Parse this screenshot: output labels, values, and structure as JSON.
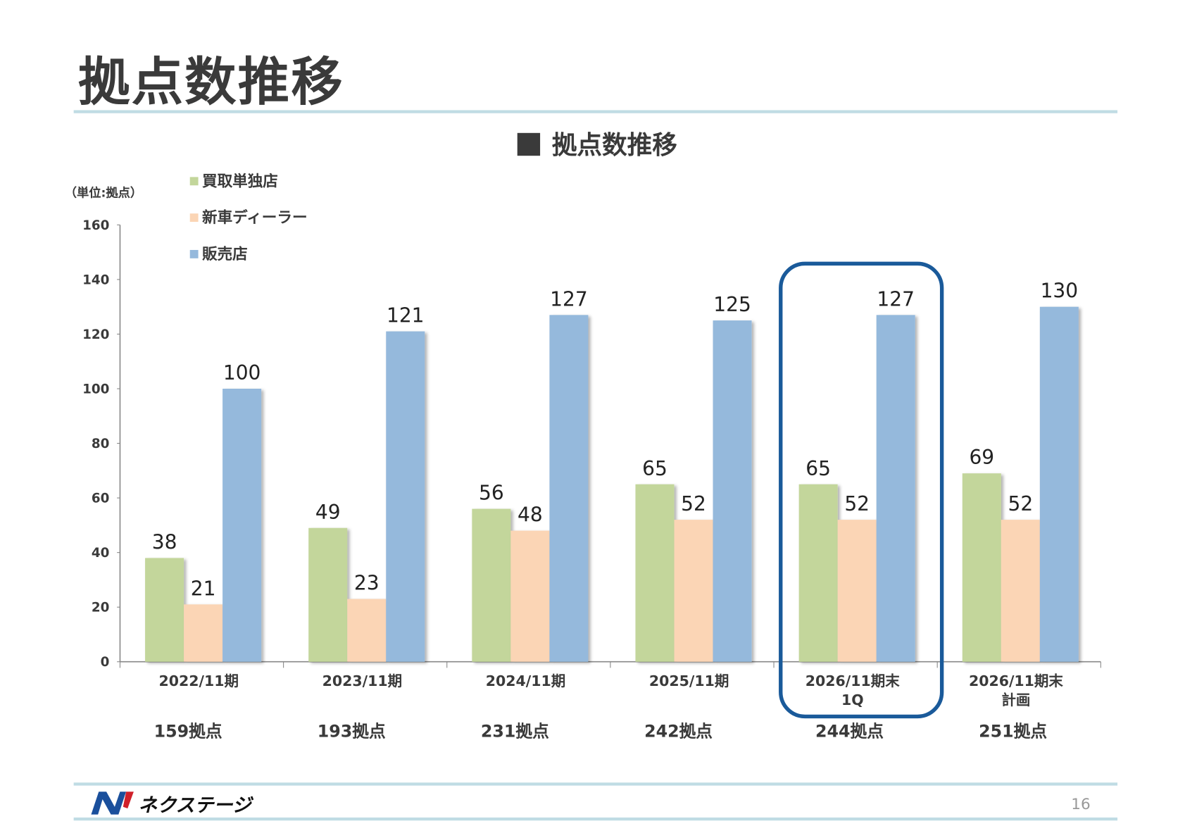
{
  "page": {
    "title": "拠点数推移",
    "page_number": "16",
    "logo_text": "ネクステージ"
  },
  "chart_data": {
    "type": "bar",
    "title": "拠点数推移",
    "unit_label": "（単位:拠点）",
    "categories": [
      [
        "2022/11期"
      ],
      [
        "2023/11期"
      ],
      [
        "2024/11期"
      ],
      [
        "2025/11期"
      ],
      [
        "2026/11期末",
        "1Q"
      ],
      [
        "2026/11期末",
        "計画"
      ]
    ],
    "totals": [
      "159拠点",
      "193拠点",
      "231拠点",
      "242拠点",
      "244拠点",
      "251拠点"
    ],
    "series": [
      {
        "name": "買取単独店",
        "color": "#c3d69b",
        "values": [
          38,
          49,
          56,
          65,
          65,
          69
        ]
      },
      {
        "name": "新車ディーラー",
        "color": "#fbd5b5",
        "values": [
          21,
          23,
          48,
          52,
          52,
          52
        ]
      },
      {
        "name": "販売店",
        "color": "#95b9dc",
        "values": [
          100,
          121,
          127,
          125,
          127,
          130
        ]
      }
    ],
    "ylim": [
      0,
      160
    ],
    "yticks": [
      0,
      20,
      40,
      60,
      80,
      100,
      120,
      140,
      160
    ],
    "grid": false,
    "legend_position": "top-left",
    "highlighted_category_index": 4,
    "highlight_color": "#1a5a9a"
  }
}
